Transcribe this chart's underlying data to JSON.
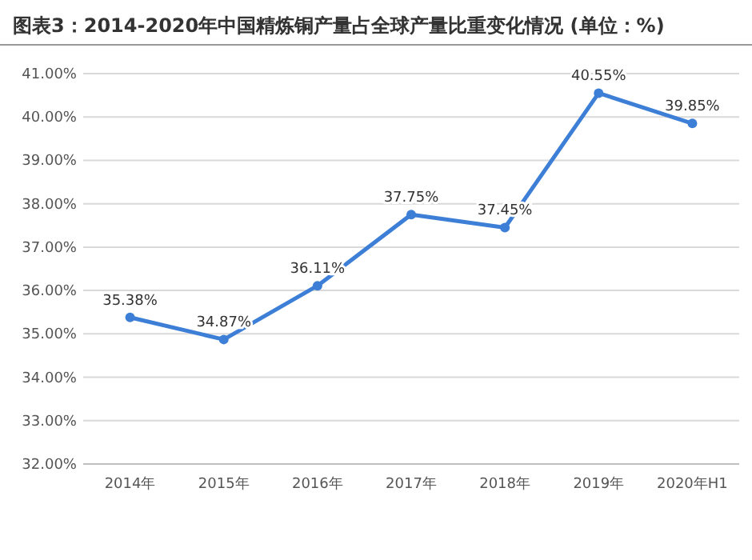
{
  "chart_data": {
    "type": "line",
    "title": "图表3：2014-2020年中国精炼铜产量占全球产量比重变化情况 (单位：%)",
    "categories": [
      "2014年",
      "2015年",
      "2016年",
      "2017年",
      "2018年",
      "2019年",
      "2020年H1"
    ],
    "values": [
      35.38,
      34.87,
      36.11,
      37.75,
      37.45,
      40.55,
      39.85
    ],
    "value_labels": [
      "35.38%",
      "34.87%",
      "36.11%",
      "37.75%",
      "37.45%",
      "40.55%",
      "39.85%"
    ],
    "color": "#3d7fd6",
    "marker": "circle",
    "grid": "y",
    "ylim": [
      32,
      41
    ],
    "yticks": [
      {
        "value": 32,
        "label": "32.00%"
      },
      {
        "value": 33,
        "label": "33.00%"
      },
      {
        "value": 34,
        "label": "34.00%"
      },
      {
        "value": 35,
        "label": "35.00%"
      },
      {
        "value": 36,
        "label": "36.00%"
      },
      {
        "value": 37,
        "label": "37.00%"
      },
      {
        "value": 38,
        "label": "38.00%"
      },
      {
        "value": 39,
        "label": "39.00%"
      },
      {
        "value": 40,
        "label": "40.00%"
      },
      {
        "value": 41,
        "label": "41.00%"
      }
    ]
  }
}
